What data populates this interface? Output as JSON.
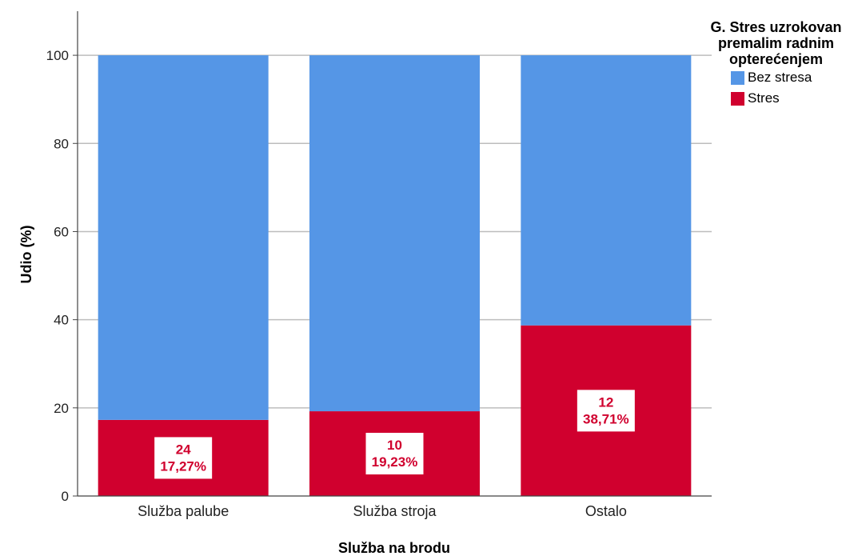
{
  "chart_data": {
    "type": "bar",
    "stacked": true,
    "categories": [
      "Služba palube",
      "Služba stroja",
      "Ostalo"
    ],
    "series": [
      {
        "name": "Stres",
        "color": "#d0002e",
        "values": [
          17.27,
          19.23,
          38.71
        ],
        "counts": [
          24,
          10,
          12
        ],
        "labels": [
          "17,27%",
          "19,23%",
          "38,71%"
        ]
      },
      {
        "name": "Bez stresa",
        "color": "#5596e6",
        "values": [
          82.73,
          80.77,
          61.29
        ]
      }
    ],
    "xlabel": "Služba na brodu",
    "ylabel": "Udio (%)",
    "ylim": [
      0,
      110
    ],
    "yticks": [
      0,
      20,
      40,
      60,
      80,
      100
    ],
    "grid": true,
    "legend": {
      "title": "G. Stres uzrokovan premalim radnim opterećenjem",
      "placement": "top-right",
      "items": [
        {
          "label": "Bez stresa",
          "color": "#5596e6"
        },
        {
          "label": "Stres",
          "color": "#d0002e"
        }
      ]
    }
  }
}
